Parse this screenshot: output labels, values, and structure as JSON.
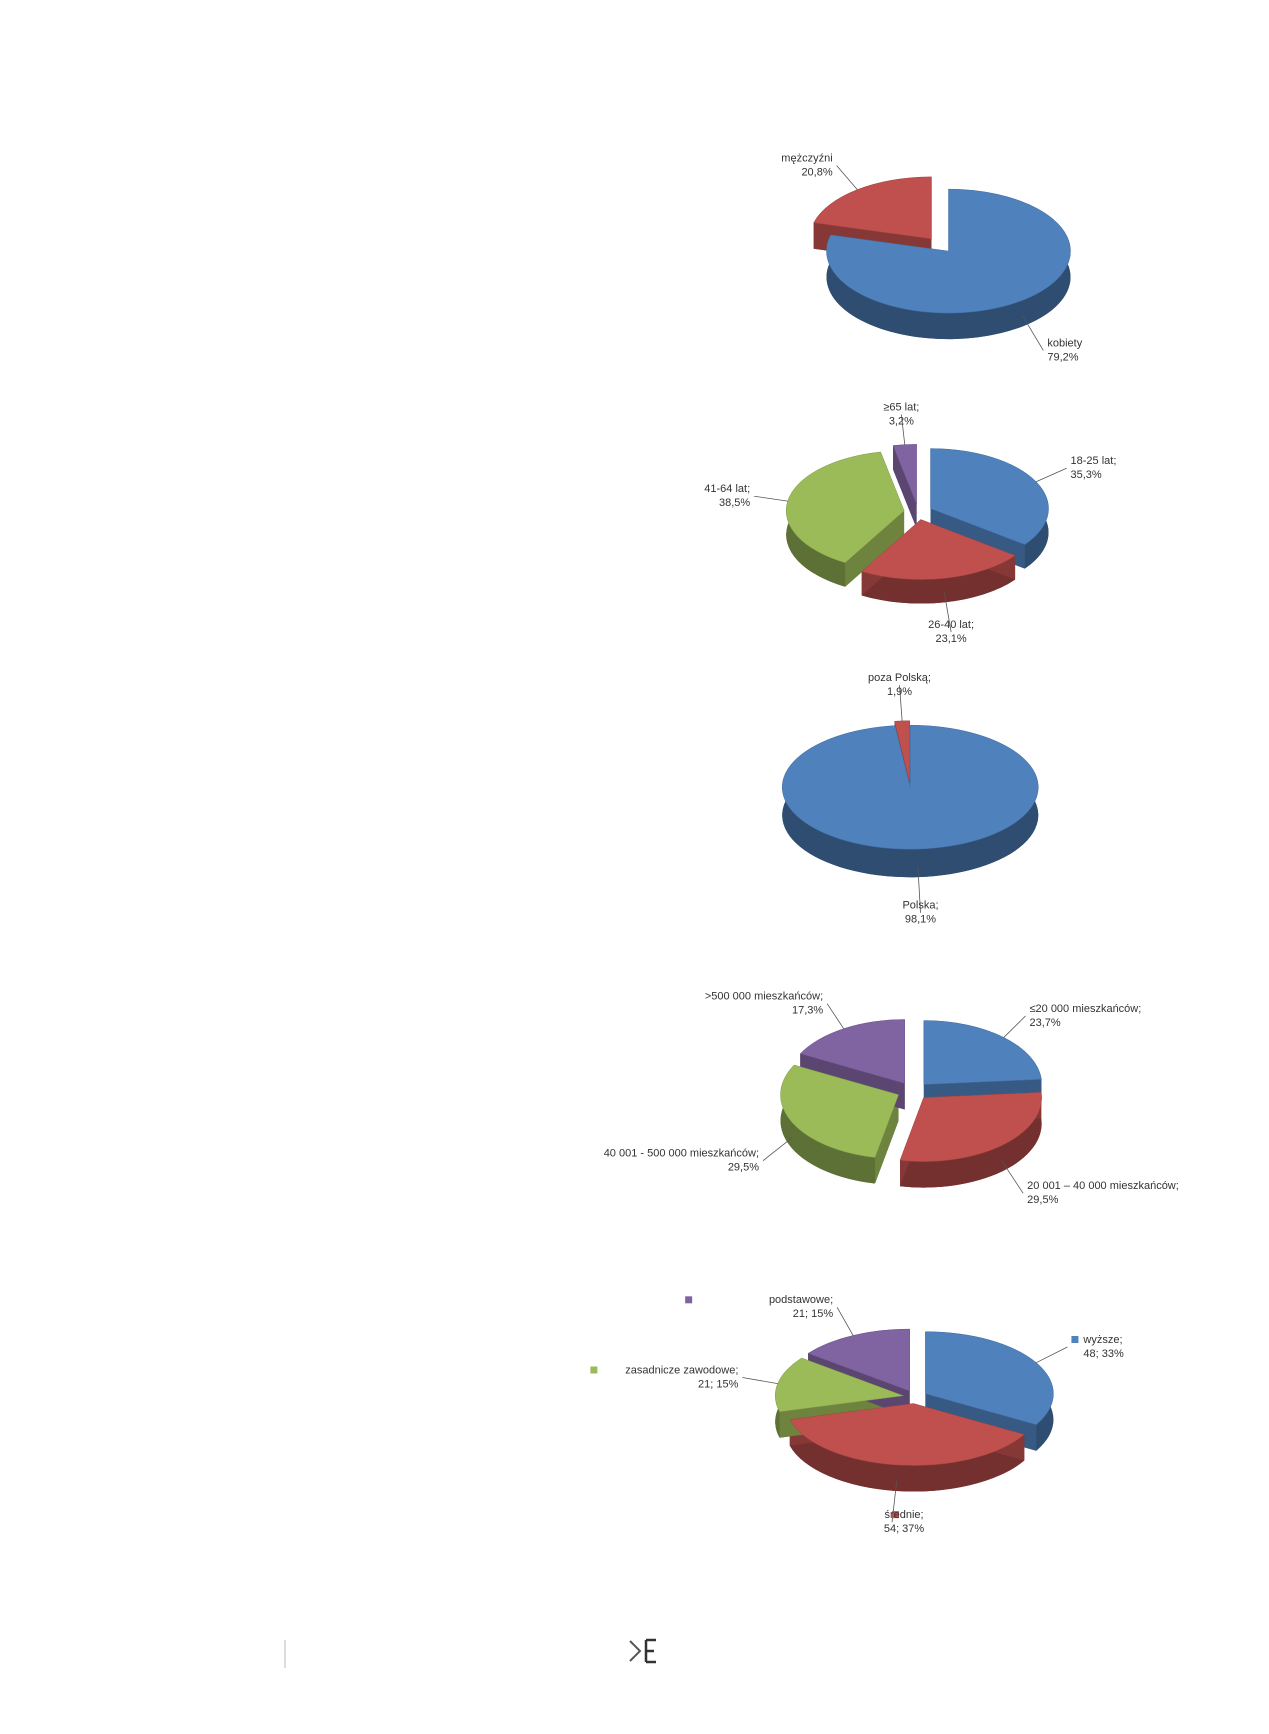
{
  "chart_data": [
    {
      "type": "pie",
      "categories": [
        "kobiety",
        "mężczyźni"
      ],
      "values": [
        79.2,
        20.8
      ],
      "value_labels": [
        "79,2%",
        "20,8%"
      ],
      "colors": [
        "#4f81bd",
        "#c0504d"
      ]
    },
    {
      "type": "pie",
      "categories": [
        "18-25 lat;",
        "26-40 lat;",
        "41-64 lat;",
        "≥65 lat;"
      ],
      "values": [
        35.3,
        23.1,
        38.5,
        3.2
      ],
      "value_labels": [
        "35,3%",
        "23,1%",
        "38,5%",
        "3,2%"
      ],
      "colors": [
        "#4f81bd",
        "#c0504d",
        "#9bbb59",
        "#8064a2"
      ]
    },
    {
      "type": "pie",
      "categories": [
        "Polska;",
        "poza Polską;"
      ],
      "values": [
        98.1,
        1.9
      ],
      "value_labels": [
        "98,1%",
        "1,9%"
      ],
      "colors": [
        "#4f81bd",
        "#c0504d"
      ]
    },
    {
      "type": "pie",
      "categories": [
        "≤20 000 mieszkańców;",
        "20 001 – 40 000 mieszkańców;",
        "40 001 - 500 000 mieszkańców;",
        ">500 000 mieszkańców;"
      ],
      "values": [
        23.7,
        29.5,
        29.5,
        17.3
      ],
      "value_labels": [
        "23,7%",
        "29,5%",
        "29,5%",
        "17,3%"
      ],
      "colors": [
        "#4f81bd",
        "#c0504d",
        "#9bbb59",
        "#8064a2"
      ]
    },
    {
      "type": "pie",
      "categories": [
        "wyższe;",
        "średnie;",
        "zasadnicze zawodowe;",
        "podstawowe;"
      ],
      "values": [
        48,
        54,
        21,
        21
      ],
      "value_labels": [
        "48; 33%",
        "54; 37%",
        "21; 15%",
        "21; 15%"
      ],
      "colors": [
        "#4f81bd",
        "#c0504d",
        "#9bbb59",
        "#8064a2"
      ],
      "label_markers": true
    }
  ]
}
